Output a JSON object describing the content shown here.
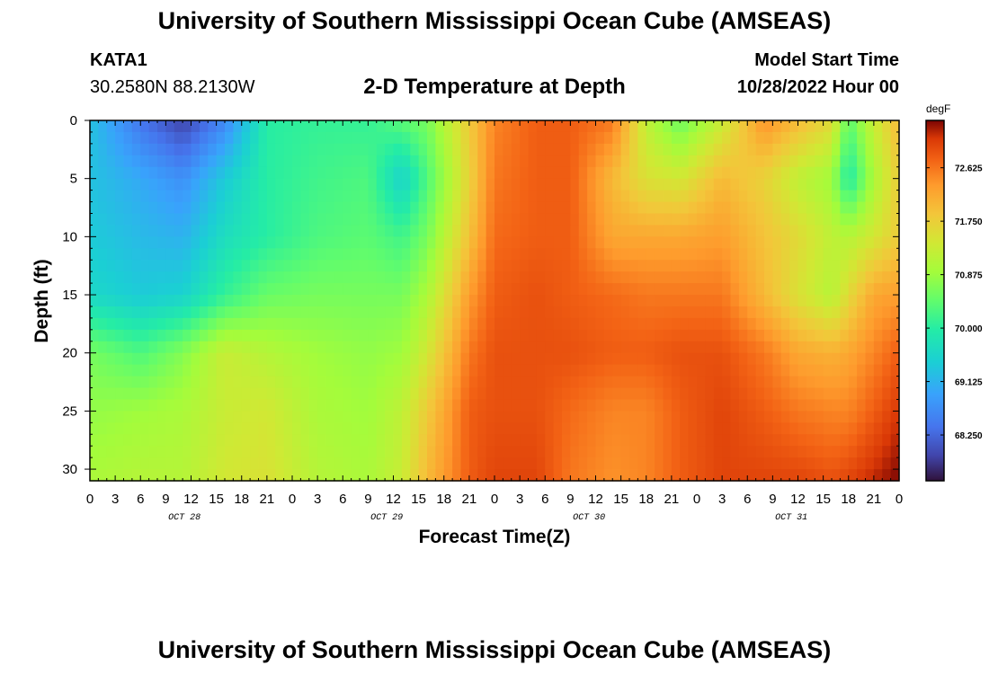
{
  "header": {
    "title": "University of Southern Mississippi Ocean Cube (AMSEAS)",
    "station": "KATA1",
    "coords": "30.2580N  88.2130W",
    "subtitle": "2-D Temperature at Depth",
    "model_label": "Model Start Time",
    "model_time": "10/28/2022 Hour 00"
  },
  "footer": {
    "title": "University of Southern Mississippi Ocean Cube (AMSEAS)"
  },
  "chart_data": {
    "type": "heatmap",
    "title": "2-D Temperature at Depth",
    "xlabel": "Forecast Time(Z)",
    "ylabel": "Depth (ft)",
    "x_hours": [
      0,
      3,
      6,
      9,
      12,
      15,
      18,
      21,
      24,
      27,
      30,
      33,
      36,
      39,
      42,
      45,
      48,
      51,
      54,
      57,
      60,
      63,
      66,
      69,
      72,
      75,
      78,
      81,
      84,
      87,
      90,
      93,
      96
    ],
    "x_tick_labels": [
      "0",
      "3",
      "6",
      "9",
      "12",
      "15",
      "18",
      "21",
      "0",
      "3",
      "6",
      "9",
      "12",
      "15",
      "18",
      "21",
      "0",
      "3",
      "6",
      "9",
      "12",
      "15",
      "18",
      "21",
      "0",
      "3",
      "6",
      "9",
      "12",
      "15",
      "18",
      "21",
      "0"
    ],
    "date_labels": [
      {
        "text": "OCT 28",
        "hour": 11
      },
      {
        "text": "OCT 29",
        "hour": 35
      },
      {
        "text": "OCT 30",
        "hour": 59
      },
      {
        "text": "OCT 31",
        "hour": 83
      }
    ],
    "xlim": [
      0,
      96
    ],
    "y_ticks": [
      0,
      5,
      10,
      15,
      20,
      25,
      30
    ],
    "ylim": [
      0,
      31
    ],
    "colorbar": {
      "unit": "degF",
      "ticks": [
        "72.625",
        "71.750",
        "70.875",
        "70.000",
        "69.125",
        "68.250"
      ],
      "tick_values": [
        72.625,
        71.75,
        70.875,
        70.0,
        69.125,
        68.25
      ],
      "range": [
        67.5,
        73.4
      ]
    },
    "grid_depths": [
      0,
      5,
      10,
      15,
      20,
      25,
      31
    ],
    "grid_hours": [
      0,
      6,
      11,
      16,
      21,
      27,
      33,
      37,
      40,
      45,
      48,
      53,
      57,
      62,
      66,
      70,
      75,
      80,
      84,
      88,
      90,
      93,
      96
    ],
    "temperatures_degF": [
      [
        69.3,
        68.4,
        67.9,
        68.6,
        70.0,
        70.1,
        70.1,
        70.4,
        70.6,
        71.8,
        72.5,
        72.8,
        72.8,
        72.6,
        71.2,
        70.5,
        71.3,
        72.4,
        72.0,
        71.6,
        70.4,
        71.3,
        72.0
      ],
      [
        69.3,
        69.0,
        68.7,
        69.4,
        70.0,
        70.2,
        70.3,
        69.5,
        70.3,
        71.7,
        72.6,
        72.8,
        72.8,
        72.0,
        71.5,
        71.4,
        72.0,
        71.7,
        71.2,
        70.9,
        69.9,
        71.0,
        71.8
      ],
      [
        69.4,
        69.2,
        69.1,
        69.7,
        70.0,
        70.3,
        70.4,
        70.2,
        70.6,
        71.9,
        72.7,
        72.8,
        72.8,
        72.2,
        72.2,
        72.2,
        72.3,
        71.9,
        71.6,
        71.2,
        71.1,
        71.4,
        71.8
      ],
      [
        69.6,
        69.4,
        69.5,
        70.1,
        70.5,
        70.6,
        70.6,
        70.6,
        71.0,
        72.3,
        72.8,
        72.9,
        72.8,
        72.7,
        72.6,
        72.6,
        72.6,
        72.0,
        71.5,
        71.1,
        71.6,
        72.2,
        72.3
      ],
      [
        70.6,
        70.3,
        70.7,
        71.3,
        71.1,
        70.9,
        70.8,
        70.9,
        71.4,
        72.6,
        72.9,
        72.9,
        72.9,
        72.8,
        72.8,
        72.9,
        72.9,
        72.6,
        72.2,
        72.1,
        72.2,
        72.5,
        72.8
      ],
      [
        70.8,
        70.9,
        71.0,
        71.3,
        71.4,
        71.0,
        70.9,
        71.2,
        71.8,
        72.8,
        72.9,
        72.9,
        72.7,
        72.5,
        72.5,
        72.8,
        73.0,
        72.8,
        72.6,
        72.5,
        72.5,
        72.8,
        73.1
      ],
      [
        71.0,
        71.1,
        71.1,
        71.4,
        71.5,
        71.1,
        71.0,
        71.3,
        72.0,
        72.8,
        73.0,
        73.0,
        72.6,
        72.4,
        72.5,
        72.8,
        73.0,
        73.0,
        73.0,
        72.9,
        73.0,
        73.2,
        73.4
      ]
    ]
  }
}
